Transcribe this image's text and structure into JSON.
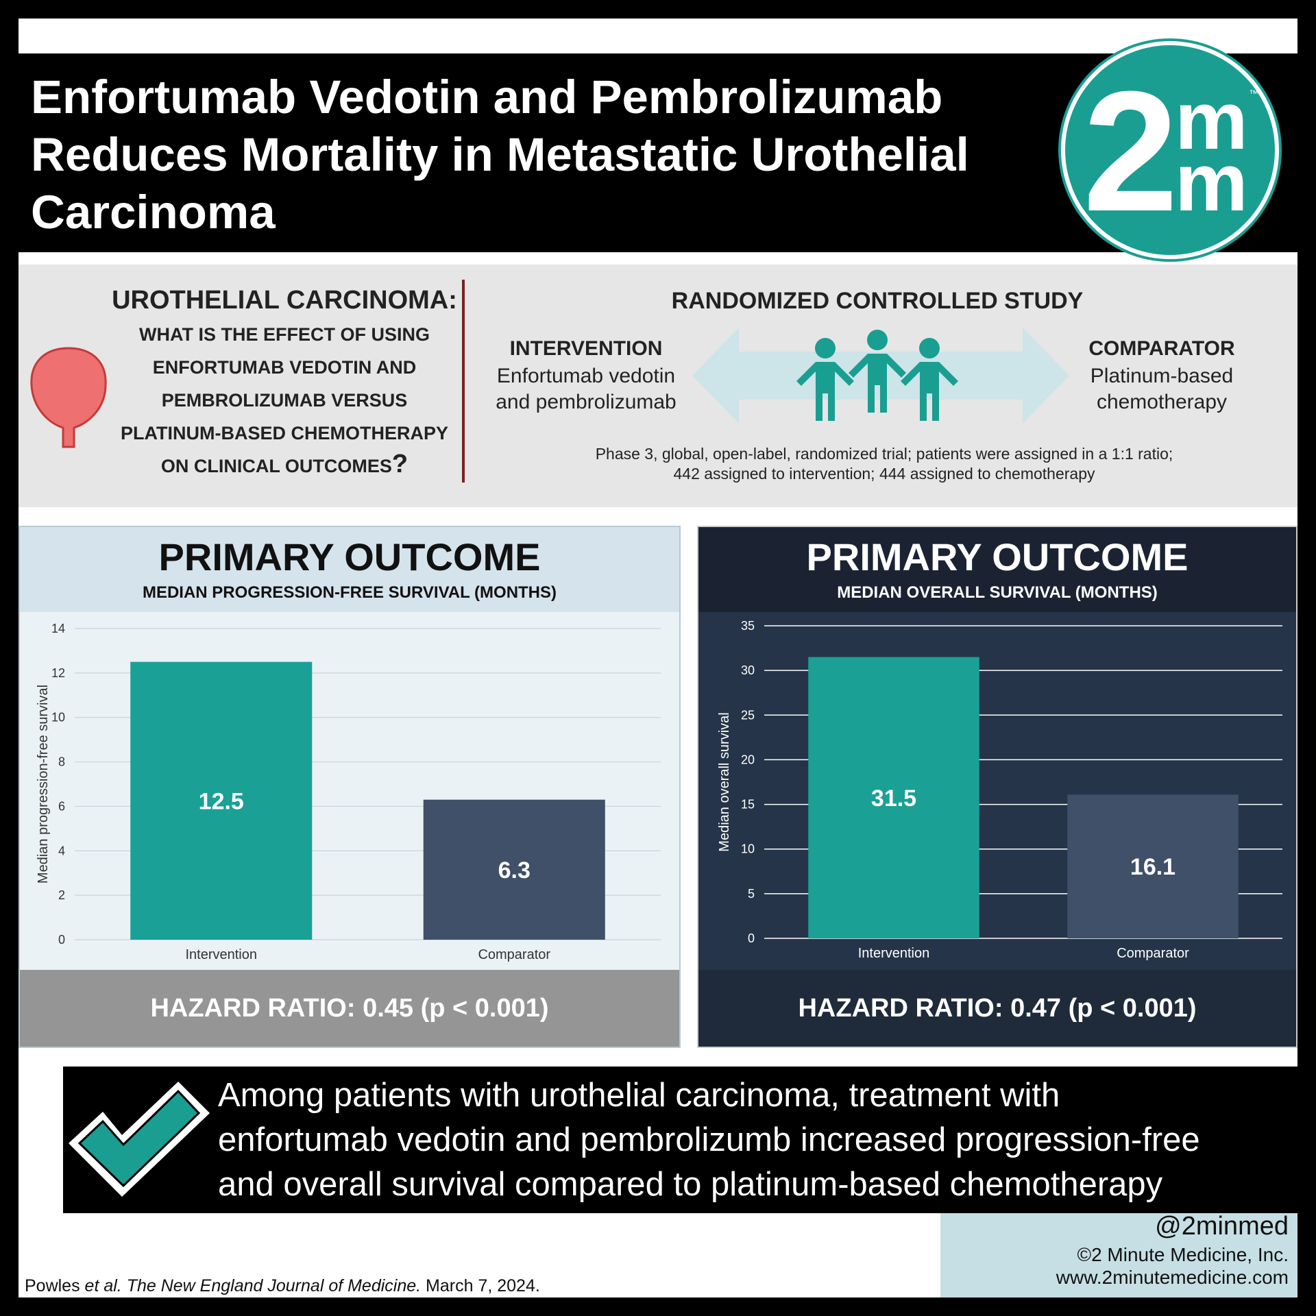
{
  "header": {
    "title": "Enfortumab Vedotin and Pembrolizumab\nReduces Mortality in Metastatic Urothelial\nCarcinoma",
    "logo": {
      "digit": "2",
      "letter_top": "m",
      "letter_bottom": "m",
      "trademark": "™"
    }
  },
  "question": {
    "lead": "UROTHELIAL CARCINOMA:",
    "body": "WHAT IS THE EFFECT OF USING ENFORTUMAB VEDOTIN AND PEMBROLIZUMAB VERSUS PLATINUM-BASED CHEMOTHERAPY ON CLINICAL OUTCOMES",
    "mark": "?"
  },
  "study": {
    "title": "RANDOMIZED CONTROLLED STUDY",
    "intervention_heading": "INTERVENTION",
    "intervention_text": "Enfortumab vedotin\nand pembrolizumab",
    "comparator_heading": "COMPARATOR",
    "comparator_text": "Platinum-based\nchemotherapy",
    "note": "Phase 3, global, open-label, randomized trial; patients were assigned in a 1:1 ratio;\n442 assigned to intervention; 444 assigned to chemotherapy"
  },
  "panels": [
    {
      "title": "PRIMARY OUTCOME",
      "subtitle": "MEDIAN PROGRESSION-FREE SURVIVAL (MONTHS)",
      "footer": "HAZARD RATIO: 0.45 (p < 0.001)"
    },
    {
      "title": "PRIMARY OUTCOME",
      "subtitle": "MEDIAN OVERALL SURVIVAL (MONTHS)",
      "footer": "HAZARD RATIO: 0.47 (p < 0.001)"
    }
  ],
  "chart_data": [
    {
      "type": "bar",
      "categories": [
        "Intervention",
        "Comparator"
      ],
      "values": [
        12.5,
        6.3
      ],
      "ylabel": "Median progression-free survival",
      "xlabel": "",
      "ylim": [
        0,
        14
      ],
      "yticks": [
        0,
        2,
        4,
        6,
        8,
        10,
        12,
        14
      ],
      "grid": true,
      "colors": [
        "#1ba096",
        "#3f5068"
      ],
      "theme": "light"
    },
    {
      "type": "bar",
      "categories": [
        "Intervention",
        "Comparator"
      ],
      "values": [
        31.5,
        16.1
      ],
      "ylabel": "Median overall survival",
      "xlabel": "",
      "ylim": [
        0,
        35
      ],
      "yticks": [
        0,
        5,
        10,
        15,
        20,
        25,
        30,
        35
      ],
      "grid": true,
      "colors": [
        "#1ba096",
        "#3f5068"
      ],
      "theme": "dark"
    }
  ],
  "conclusion": "Among patients with urothelial carcinoma, treatment with\nenfortumab vedotin and pembrolizumb increased progression-free\nand overall survival compared to platinum-based chemotherapy",
  "footer": {
    "handle": "@2minmed",
    "copyright": "©2 Minute Medicine, Inc.",
    "website": "www.2minutemedicine.com",
    "citation_author": "Powles ",
    "citation_etal": "et al.",
    "citation_journal": " The New England Journal of Medicine.",
    "citation_date": " March 7, 2024."
  },
  "colors": {
    "teal": "#1a9e92",
    "navy": "#253448",
    "bladder": "#e86a6a"
  },
  "icons": [
    "bladder-icon",
    "double-arrow-icon",
    "people-icon",
    "checkmark-icon"
  ]
}
